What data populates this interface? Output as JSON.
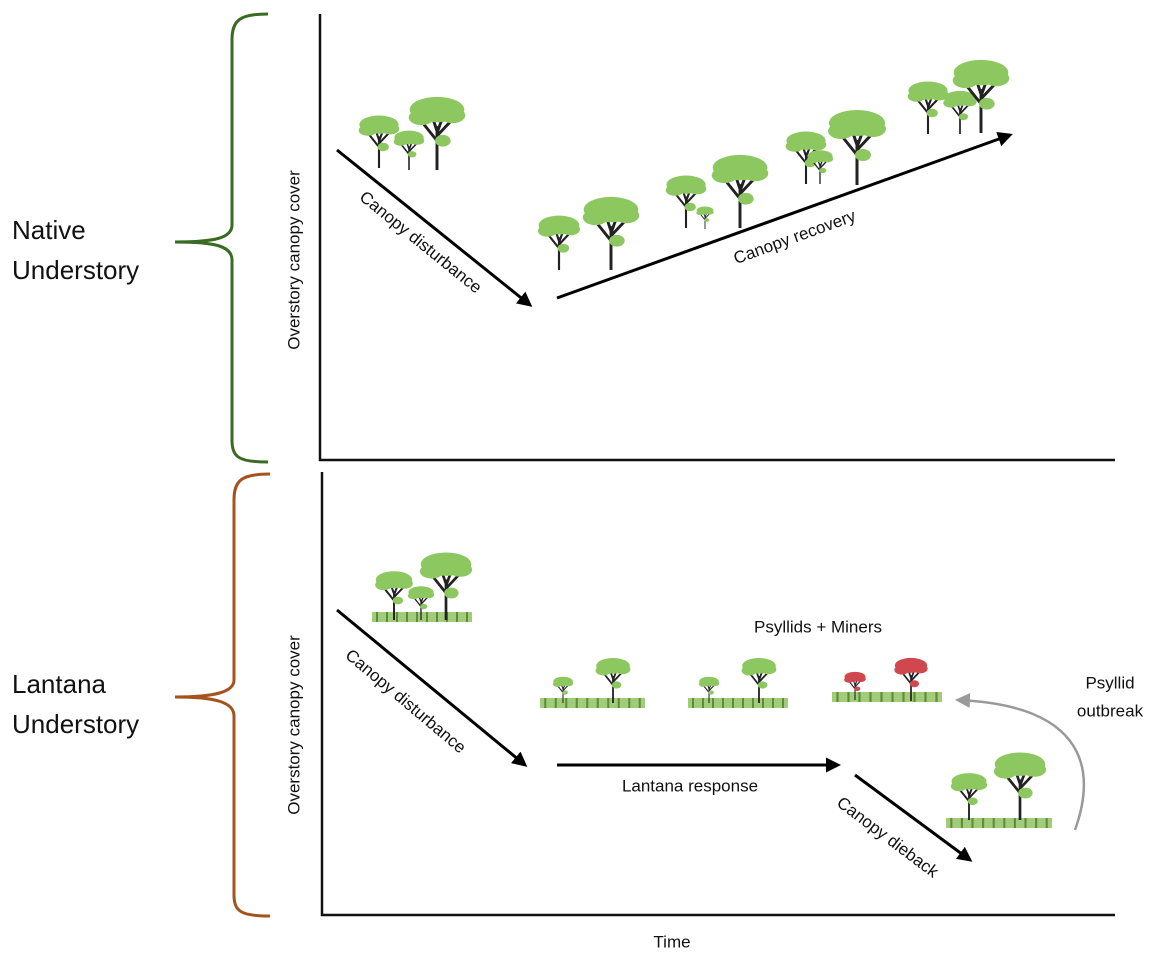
{
  "panels": [
    {
      "label_lines": [
        "Native",
        "Understory"
      ],
      "y_axis_label": "Overstory canopy cover",
      "arrows": [
        "Canopy disturbance",
        "Canopy recovery"
      ]
    },
    {
      "label_lines": [
        "Lantana",
        "Understory"
      ],
      "y_axis_label": "Overstory canopy cover",
      "arrows": [
        "Canopy disturbance",
        "Lantana response",
        "Canopy dieback"
      ],
      "annotations": [
        "Psyllids + Miners"
      ],
      "outbreak_lines": [
        "Psyllid",
        "outbreak"
      ]
    }
  ],
  "x_axis_label": "Time"
}
